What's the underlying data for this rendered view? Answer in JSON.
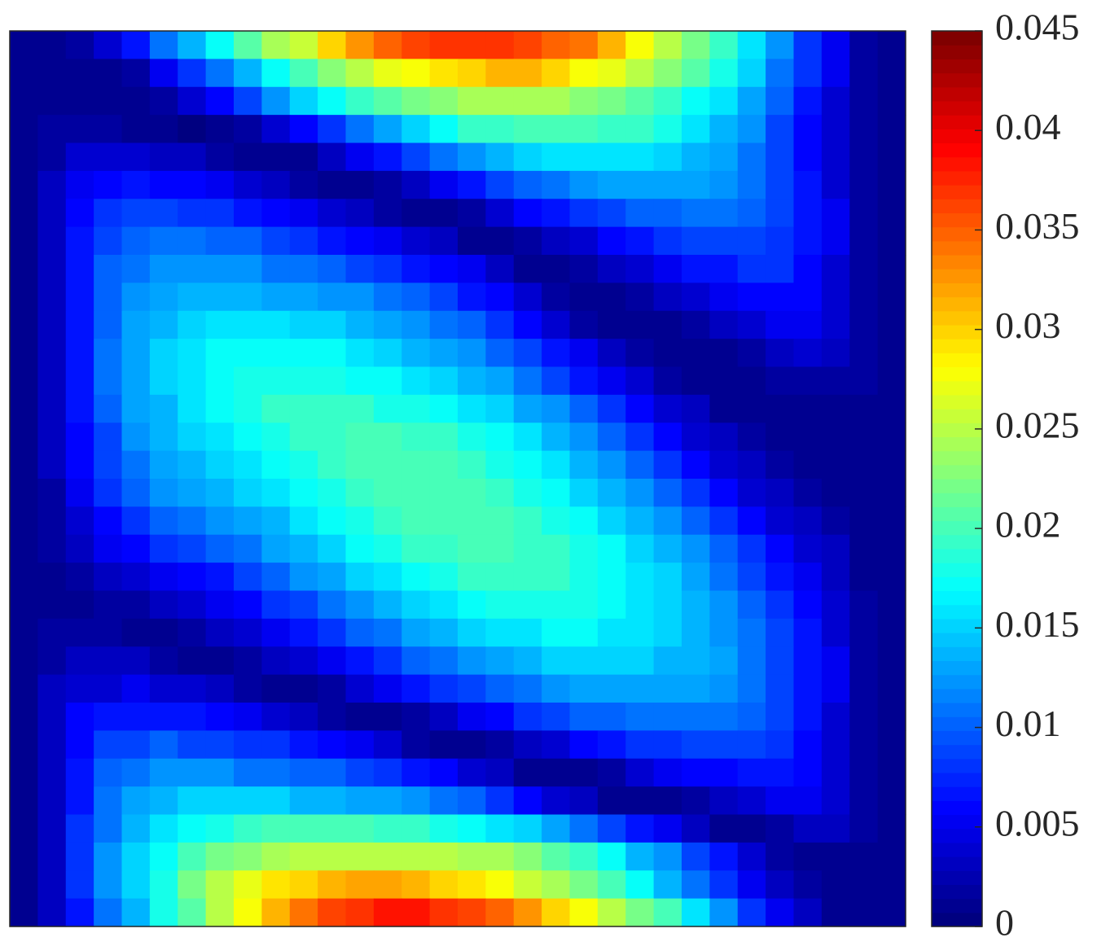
{
  "chart_data": {
    "type": "heatmap",
    "colormap": "jet",
    "clim": [
      0,
      0.045
    ],
    "cticks": [
      0,
      0.005,
      0.01,
      0.015,
      0.02,
      0.025,
      0.03,
      0.035,
      0.04,
      0.045
    ],
    "values": [
      [
        0.001,
        0.001,
        0.002,
        0.004,
        0.007,
        0.011,
        0.014,
        0.017,
        0.021,
        0.024,
        0.026,
        0.03,
        0.033,
        0.035,
        0.036,
        0.037,
        0.037,
        0.037,
        0.036,
        0.035,
        0.034,
        0.031,
        0.028,
        0.025,
        0.022,
        0.019,
        0.016,
        0.012,
        0.008,
        0.005,
        0.002,
        0.001
      ],
      [
        0.001,
        0.001,
        0.001,
        0.001,
        0.002,
        0.005,
        0.008,
        0.011,
        0.014,
        0.017,
        0.02,
        0.023,
        0.025,
        0.027,
        0.028,
        0.029,
        0.03,
        0.031,
        0.031,
        0.03,
        0.028,
        0.027,
        0.025,
        0.023,
        0.021,
        0.018,
        0.015,
        0.011,
        0.008,
        0.005,
        0.002,
        0.001
      ],
      [
        0.001,
        0.001,
        0.001,
        0.001,
        0.001,
        0.002,
        0.004,
        0.006,
        0.009,
        0.012,
        0.015,
        0.017,
        0.019,
        0.021,
        0.022,
        0.023,
        0.024,
        0.024,
        0.024,
        0.024,
        0.023,
        0.022,
        0.021,
        0.019,
        0.017,
        0.016,
        0.013,
        0.01,
        0.007,
        0.004,
        0.002,
        0.001
      ],
      [
        0.001,
        0.002,
        0.002,
        0.002,
        0.001,
        0.001,
        0,
        0.001,
        0.002,
        0.004,
        0.006,
        0.008,
        0.011,
        0.013,
        0.015,
        0.017,
        0.019,
        0.019,
        0.02,
        0.02,
        0.02,
        0.019,
        0.019,
        0.018,
        0.016,
        0.014,
        0.012,
        0.009,
        0.006,
        0.004,
        0.002,
        0.001
      ],
      [
        0.001,
        0.002,
        0.004,
        0.004,
        0.004,
        0.003,
        0.003,
        0.002,
        0.001,
        0.001,
        0.001,
        0.003,
        0.005,
        0.007,
        0.009,
        0.011,
        0.012,
        0.014,
        0.015,
        0.016,
        0.016,
        0.016,
        0.016,
        0.015,
        0.014,
        0.013,
        0.011,
        0.009,
        0.006,
        0.004,
        0.002,
        0.001
      ],
      [
        0.001,
        0.003,
        0.005,
        0.006,
        0.007,
        0.006,
        0.006,
        0.005,
        0.004,
        0.003,
        0.002,
        0.001,
        0.001,
        0.002,
        0.003,
        0.005,
        0.007,
        0.009,
        0.01,
        0.011,
        0.012,
        0.013,
        0.013,
        0.013,
        0.013,
        0.012,
        0.011,
        0.009,
        0.007,
        0.004,
        0.002,
        0.001
      ],
      [
        0.001,
        0.003,
        0.006,
        0.008,
        0.009,
        0.009,
        0.008,
        0.008,
        0.007,
        0.006,
        0.005,
        0.004,
        0.003,
        0.002,
        0.001,
        0.001,
        0.002,
        0.004,
        0.006,
        0.007,
        0.008,
        0.009,
        0.01,
        0.01,
        0.011,
        0.011,
        0.01,
        0.009,
        0.007,
        0.005,
        0.002,
        0.001
      ],
      [
        0.001,
        0.003,
        0.007,
        0.009,
        0.01,
        0.011,
        0.011,
        0.01,
        0.01,
        0.009,
        0.008,
        0.007,
        0.006,
        0.005,
        0.004,
        0.003,
        0.001,
        0.001,
        0.002,
        0.003,
        0.004,
        0.006,
        0.007,
        0.008,
        0.009,
        0.009,
        0.009,
        0.008,
        0.007,
        0.005,
        0.002,
        0.001
      ],
      [
        0.001,
        0.003,
        0.007,
        0.01,
        0.011,
        0.012,
        0.012,
        0.012,
        0.012,
        0.011,
        0.011,
        0.01,
        0.009,
        0.008,
        0.007,
        0.006,
        0.005,
        0.003,
        0.001,
        0.001,
        0.002,
        0.003,
        0.004,
        0.005,
        0.007,
        0.007,
        0.008,
        0.008,
        0.006,
        0.004,
        0.002,
        0.001
      ],
      [
        0.001,
        0.003,
        0.007,
        0.01,
        0.012,
        0.013,
        0.014,
        0.014,
        0.014,
        0.013,
        0.013,
        0.012,
        0.012,
        0.011,
        0.01,
        0.009,
        0.007,
        0.006,
        0.004,
        0.002,
        0.001,
        0.001,
        0.002,
        0.003,
        0.004,
        0.005,
        0.006,
        0.006,
        0.006,
        0.004,
        0.002,
        0.001
      ],
      [
        0.001,
        0.003,
        0.007,
        0.01,
        0.013,
        0.014,
        0.015,
        0.016,
        0.016,
        0.016,
        0.015,
        0.015,
        0.014,
        0.013,
        0.012,
        0.011,
        0.01,
        0.008,
        0.006,
        0.004,
        0.002,
        0.001,
        0.001,
        0.001,
        0.002,
        0.003,
        0.004,
        0.005,
        0.005,
        0.004,
        0.002,
        0.001
      ],
      [
        0.001,
        0.003,
        0.007,
        0.011,
        0.013,
        0.015,
        0.016,
        0.017,
        0.017,
        0.017,
        0.017,
        0.017,
        0.016,
        0.015,
        0.014,
        0.013,
        0.012,
        0.01,
        0.009,
        0.007,
        0.005,
        0.003,
        0.002,
        0.001,
        0.001,
        0.001,
        0.002,
        0.003,
        0.004,
        0.003,
        0.002,
        0.001
      ],
      [
        0.001,
        0.003,
        0.007,
        0.011,
        0.013,
        0.015,
        0.016,
        0.017,
        0.018,
        0.018,
        0.018,
        0.018,
        0.017,
        0.017,
        0.016,
        0.015,
        0.014,
        0.013,
        0.011,
        0.009,
        0.007,
        0.005,
        0.004,
        0.002,
        0.001,
        0.001,
        0.001,
        0.002,
        0.002,
        0.002,
        0.002,
        0.001
      ],
      [
        0.001,
        0.003,
        0.007,
        0.01,
        0.013,
        0.014,
        0.016,
        0.017,
        0.018,
        0.019,
        0.019,
        0.019,
        0.019,
        0.018,
        0.018,
        0.017,
        0.016,
        0.015,
        0.013,
        0.012,
        0.01,
        0.008,
        0.006,
        0.004,
        0.003,
        0.001,
        0.001,
        0.001,
        0.001,
        0.001,
        0.001,
        0.001
      ],
      [
        0.001,
        0.003,
        0.006,
        0.009,
        0.012,
        0.014,
        0.015,
        0.016,
        0.017,
        0.018,
        0.019,
        0.019,
        0.02,
        0.02,
        0.019,
        0.019,
        0.018,
        0.017,
        0.016,
        0.014,
        0.012,
        0.01,
        0.008,
        0.006,
        0.004,
        0.003,
        0.002,
        0.001,
        0.001,
        0.001,
        0.001,
        0.001
      ],
      [
        0.001,
        0.003,
        0.006,
        0.009,
        0.011,
        0.013,
        0.014,
        0.015,
        0.016,
        0.017,
        0.018,
        0.019,
        0.02,
        0.02,
        0.02,
        0.02,
        0.019,
        0.018,
        0.017,
        0.016,
        0.014,
        0.012,
        0.01,
        0.008,
        0.006,
        0.004,
        0.003,
        0.002,
        0.001,
        0.001,
        0.001,
        0.001
      ],
      [
        0.001,
        0.002,
        0.005,
        0.008,
        0.01,
        0.012,
        0.013,
        0.014,
        0.015,
        0.016,
        0.017,
        0.018,
        0.019,
        0.02,
        0.02,
        0.02,
        0.02,
        0.019,
        0.018,
        0.017,
        0.015,
        0.014,
        0.012,
        0.01,
        0.008,
        0.006,
        0.004,
        0.003,
        0.002,
        0.001,
        0.001,
        0.001
      ],
      [
        0.001,
        0.002,
        0.004,
        0.006,
        0.008,
        0.01,
        0.011,
        0.012,
        0.013,
        0.014,
        0.016,
        0.017,
        0.018,
        0.019,
        0.02,
        0.02,
        0.02,
        0.02,
        0.019,
        0.018,
        0.017,
        0.015,
        0.014,
        0.012,
        0.01,
        0.008,
        0.006,
        0.004,
        0.003,
        0.002,
        0.001,
        0.001
      ],
      [
        0.001,
        0.002,
        0.003,
        0.005,
        0.006,
        0.008,
        0.009,
        0.01,
        0.011,
        0.013,
        0.014,
        0.015,
        0.017,
        0.018,
        0.019,
        0.019,
        0.02,
        0.02,
        0.019,
        0.019,
        0.018,
        0.017,
        0.015,
        0.014,
        0.012,
        0.01,
        0.008,
        0.006,
        0.004,
        0.003,
        0.001,
        0.001
      ],
      [
        0.001,
        0.001,
        0.002,
        0.003,
        0.004,
        0.005,
        0.006,
        0.007,
        0.009,
        0.01,
        0.012,
        0.013,
        0.015,
        0.016,
        0.017,
        0.018,
        0.019,
        0.019,
        0.019,
        0.019,
        0.018,
        0.017,
        0.016,
        0.015,
        0.013,
        0.011,
        0.009,
        0.007,
        0.005,
        0.003,
        0.001,
        0.001
      ],
      [
        0.001,
        0.001,
        0.001,
        0.002,
        0.002,
        0.003,
        0.004,
        0.005,
        0.006,
        0.008,
        0.009,
        0.011,
        0.012,
        0.014,
        0.015,
        0.016,
        0.017,
        0.018,
        0.018,
        0.018,
        0.018,
        0.017,
        0.016,
        0.015,
        0.014,
        0.012,
        0.01,
        0.008,
        0.006,
        0.004,
        0.002,
        0.001
      ],
      [
        0.001,
        0.002,
        0.002,
        0.002,
        0.001,
        0.001,
        0.002,
        0.003,
        0.004,
        0.005,
        0.007,
        0.008,
        0.01,
        0.011,
        0.013,
        0.014,
        0.015,
        0.016,
        0.016,
        0.017,
        0.017,
        0.016,
        0.016,
        0.015,
        0.014,
        0.012,
        0.011,
        0.009,
        0.007,
        0.004,
        0.002,
        0.001
      ],
      [
        0.001,
        0.002,
        0.003,
        0.003,
        0.003,
        0.002,
        0.001,
        0.001,
        0.002,
        0.003,
        0.004,
        0.005,
        0.007,
        0.008,
        0.01,
        0.011,
        0.012,
        0.013,
        0.014,
        0.015,
        0.015,
        0.015,
        0.015,
        0.014,
        0.014,
        0.013,
        0.011,
        0.009,
        0.007,
        0.005,
        0.002,
        0.001
      ],
      [
        0.001,
        0.003,
        0.004,
        0.004,
        0.005,
        0.004,
        0.004,
        0.003,
        0.002,
        0.001,
        0.001,
        0.002,
        0.004,
        0.005,
        0.007,
        0.008,
        0.009,
        0.01,
        0.011,
        0.012,
        0.013,
        0.013,
        0.013,
        0.013,
        0.013,
        0.012,
        0.011,
        0.009,
        0.007,
        0.005,
        0.002,
        0.001
      ],
      [
        0.001,
        0.003,
        0.006,
        0.007,
        0.007,
        0.007,
        0.007,
        0.006,
        0.005,
        0.004,
        0.003,
        0.002,
        0.001,
        0.001,
        0.002,
        0.003,
        0.005,
        0.006,
        0.008,
        0.009,
        0.01,
        0.01,
        0.011,
        0.011,
        0.011,
        0.011,
        0.01,
        0.009,
        0.007,
        0.004,
        0.002,
        0.001
      ],
      [
        0.001,
        0.003,
        0.006,
        0.009,
        0.009,
        0.01,
        0.009,
        0.009,
        0.008,
        0.008,
        0.007,
        0.006,
        0.005,
        0.004,
        0.002,
        0.001,
        0.001,
        0.002,
        0.003,
        0.004,
        0.006,
        0.007,
        0.008,
        0.008,
        0.009,
        0.009,
        0.009,
        0.008,
        0.006,
        0.004,
        0.002,
        0.001
      ],
      [
        0.001,
        0.003,
        0.007,
        0.01,
        0.011,
        0.012,
        0.012,
        0.012,
        0.011,
        0.011,
        0.01,
        0.01,
        0.009,
        0.008,
        0.007,
        0.006,
        0.004,
        0.003,
        0.001,
        0.001,
        0.001,
        0.002,
        0.004,
        0.005,
        0.006,
        0.006,
        0.007,
        0.007,
        0.006,
        0.004,
        0.002,
        0.001
      ],
      [
        0.001,
        0.003,
        0.007,
        0.011,
        0.013,
        0.014,
        0.015,
        0.015,
        0.015,
        0.015,
        0.014,
        0.014,
        0.013,
        0.013,
        0.012,
        0.011,
        0.01,
        0.008,
        0.006,
        0.004,
        0.003,
        0.001,
        0.001,
        0.001,
        0.002,
        0.003,
        0.004,
        0.005,
        0.005,
        0.004,
        0.002,
        0.001
      ],
      [
        0.001,
        0.003,
        0.008,
        0.011,
        0.014,
        0.016,
        0.017,
        0.018,
        0.019,
        0.02,
        0.02,
        0.02,
        0.02,
        0.019,
        0.019,
        0.018,
        0.017,
        0.016,
        0.015,
        0.013,
        0.011,
        0.009,
        0.007,
        0.005,
        0.003,
        0.001,
        0.001,
        0.002,
        0.003,
        0.003,
        0.002,
        0.001
      ],
      [
        0.001,
        0.003,
        0.008,
        0.012,
        0.015,
        0.017,
        0.02,
        0.022,
        0.023,
        0.024,
        0.025,
        0.025,
        0.025,
        0.025,
        0.025,
        0.025,
        0.024,
        0.024,
        0.023,
        0.021,
        0.019,
        0.017,
        0.014,
        0.012,
        0.009,
        0.007,
        0.004,
        0.002,
        0.001,
        0.001,
        0.001,
        0.001
      ],
      [
        0.001,
        0.003,
        0.008,
        0.012,
        0.015,
        0.018,
        0.022,
        0.025,
        0.027,
        0.029,
        0.03,
        0.031,
        0.032,
        0.032,
        0.031,
        0.03,
        0.029,
        0.028,
        0.026,
        0.024,
        0.022,
        0.02,
        0.017,
        0.014,
        0.011,
        0.008,
        0.005,
        0.003,
        0.002,
        0.001,
        0.001,
        0.001
      ],
      [
        0.001,
        0.003,
        0.007,
        0.011,
        0.014,
        0.018,
        0.021,
        0.025,
        0.028,
        0.031,
        0.034,
        0.036,
        0.037,
        0.038,
        0.038,
        0.037,
        0.036,
        0.035,
        0.033,
        0.03,
        0.028,
        0.025,
        0.022,
        0.02,
        0.016,
        0.012,
        0.008,
        0.005,
        0.003,
        0.001,
        0.001,
        0.001
      ]
    ]
  }
}
